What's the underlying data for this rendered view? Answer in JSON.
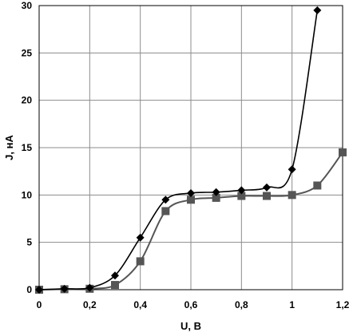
{
  "chart_data": {
    "type": "line",
    "xlabel": "U, В",
    "ylabel": "J, нА",
    "xlim": [
      0,
      1.2
    ],
    "ylim": [
      0,
      30
    ],
    "x_ticks": [
      {
        "value": 0,
        "label": "0"
      },
      {
        "value": 0.2,
        "label": "0,2"
      },
      {
        "value": 0.4,
        "label": "0,4"
      },
      {
        "value": 0.6,
        "label": "0,6"
      },
      {
        "value": 0.8,
        "label": "0,8"
      },
      {
        "value": 1.0,
        "label": "1"
      },
      {
        "value": 1.2,
        "label": "1,2"
      }
    ],
    "y_ticks": [
      {
        "value": 0,
        "label": "0"
      },
      {
        "value": 5,
        "label": "5"
      },
      {
        "value": 10,
        "label": "10"
      },
      {
        "value": 15,
        "label": "15"
      },
      {
        "value": 20,
        "label": "20"
      },
      {
        "value": 25,
        "label": "25"
      },
      {
        "value": 30,
        "label": "30"
      }
    ],
    "grid": true,
    "legend": "none",
    "series": [
      {
        "marker": "diamond",
        "color": "#000000",
        "x": [
          0,
          0.1,
          0.2,
          0.3,
          0.4,
          0.5,
          0.6,
          0.7,
          0.8,
          0.9,
          1.0,
          1.1
        ],
        "y": [
          0,
          0.1,
          0.2,
          1.5,
          5.5,
          9.5,
          10.2,
          10.3,
          10.5,
          10.8,
          12.7,
          29.5
        ]
      },
      {
        "marker": "square",
        "color": "#555555",
        "x": [
          0,
          0.1,
          0.2,
          0.3,
          0.4,
          0.5,
          0.6,
          0.7,
          0.8,
          0.9,
          1.0,
          1.1,
          1.2
        ],
        "y": [
          0,
          0.05,
          0.1,
          0.5,
          3.0,
          8.3,
          9.5,
          9.7,
          9.9,
          9.9,
          10.0,
          11.0,
          14.5
        ]
      }
    ]
  }
}
